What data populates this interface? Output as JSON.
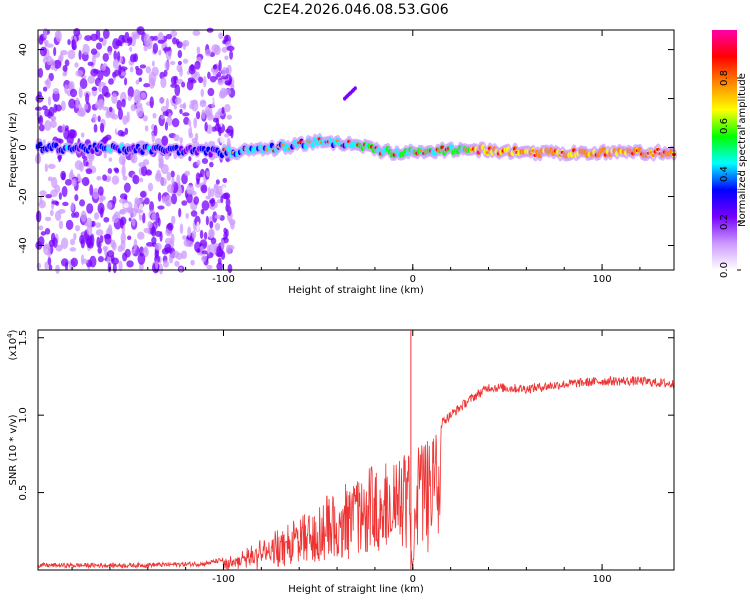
{
  "title": "C2E4.2026.046.08.53.G06",
  "chart_data": [
    {
      "type": "heatmap",
      "name": "spectrogram",
      "xlabel": "Height of straight line (km)",
      "ylabel": "Frequency (Hz)",
      "xlim": [
        -198,
        138
      ],
      "ylim": [
        -50,
        48
      ],
      "xticks": [
        {
          "v": -100,
          "label": "-100"
        },
        {
          "v": 0,
          "label": "0"
        },
        {
          "v": 100,
          "label": "100"
        }
      ],
      "yticks": [
        {
          "v": -40,
          "label": "-40"
        },
        {
          "v": -20,
          "label": "-20"
        },
        {
          "v": 0,
          "label": "0"
        },
        {
          "v": 20,
          "label": "20"
        },
        {
          "v": 40,
          "label": "40"
        }
      ],
      "band_ridge_hz": [
        [
          -198,
          0
        ],
        [
          -120,
          -1
        ],
        [
          -100,
          -2
        ],
        [
          -80,
          -1
        ],
        [
          -60,
          1
        ],
        [
          -50,
          3
        ],
        [
          -40,
          2
        ],
        [
          -30,
          1
        ],
        [
          -20,
          -1
        ],
        [
          -10,
          -2
        ],
        [
          0,
          -2
        ],
        [
          20,
          -1
        ],
        [
          40,
          -1
        ],
        [
          60,
          -2
        ],
        [
          80,
          -2
        ],
        [
          100,
          -2
        ],
        [
          120,
          -2
        ],
        [
          138,
          -2
        ]
      ],
      "noise_region_km": [
        -198,
        -100
      ]
    },
    {
      "type": "colorbar",
      "label": "Normalized spectral amplitude",
      "range": [
        0,
        1
      ],
      "ticks": [
        {
          "v": 0.0,
          "label": "0.0"
        },
        {
          "v": 0.2,
          "label": "0.2"
        },
        {
          "v": 0.4,
          "label": "0.4"
        },
        {
          "v": 0.6,
          "label": "0.6"
        },
        {
          "v": 0.8,
          "label": "0.8"
        }
      ],
      "colors": [
        "#ffffff",
        "#cc99ff",
        "#7700ff",
        "#0000ff",
        "#00ffff",
        "#00ff00",
        "#ffff00",
        "#ff8800",
        "#ff0000",
        "#ff00aa"
      ]
    },
    {
      "type": "line",
      "name": "snr",
      "xlabel": "Height of straight line (km)",
      "ylabel": "SNR (10 * v/v)",
      "scale_label": "(x10",
      "scale_exp": "4",
      "xlim": [
        -198,
        138
      ],
      "ylim": [
        0,
        1.55
      ],
      "xticks": [
        {
          "v": -100,
          "label": "-100"
        },
        {
          "v": 0,
          "label": "0"
        },
        {
          "v": 100,
          "label": "100"
        }
      ],
      "yticks": [
        {
          "v": 0.5,
          "label": "0.5"
        },
        {
          "v": 1.0,
          "label": "1.0"
        },
        {
          "v": 1.5,
          "label": "1.5"
        }
      ],
      "color": "#ee3333",
      "envelope": [
        [
          -198,
          0.03
        ],
        [
          -150,
          0.03
        ],
        [
          -110,
          0.04
        ],
        [
          -95,
          0.08
        ],
        [
          -80,
          0.18
        ],
        [
          -70,
          0.25
        ],
        [
          -60,
          0.32
        ],
        [
          -50,
          0.42
        ],
        [
          -40,
          0.52
        ],
        [
          -30,
          0.6
        ],
        [
          -20,
          0.68
        ],
        [
          -10,
          0.76
        ],
        [
          -2,
          0.8
        ],
        [
          0,
          0.02
        ],
        [
          2,
          0.82
        ],
        [
          10,
          0.9
        ],
        [
          20,
          1.0
        ],
        [
          30,
          1.1
        ],
        [
          40,
          1.18
        ],
        [
          60,
          1.17
        ],
        [
          80,
          1.2
        ],
        [
          100,
          1.22
        ],
        [
          120,
          1.22
        ],
        [
          138,
          1.2
        ]
      ],
      "spike": [
        -1,
        1.55
      ]
    }
  ]
}
